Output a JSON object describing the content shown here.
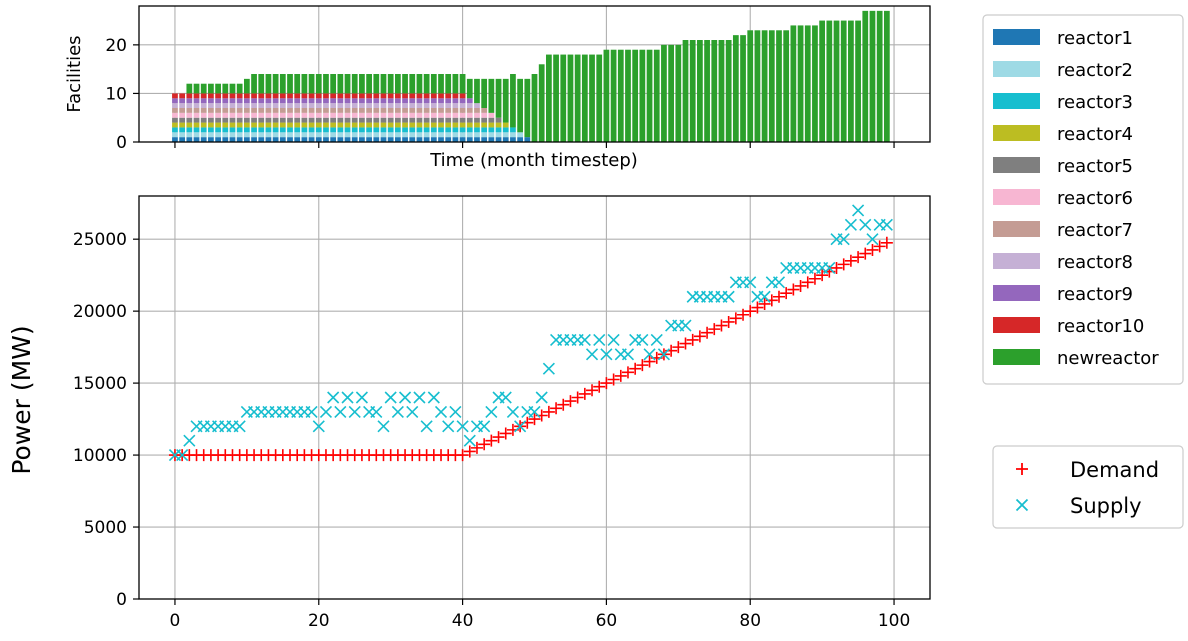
{
  "chart_data": [
    {
      "type": "bar",
      "subtype": "stacked",
      "title": "",
      "xlabel": "Time (month timestep)",
      "ylabel": "Facilities",
      "xlim": [
        -5,
        105
      ],
      "ylim": [
        0,
        28
      ],
      "yticks": [
        0,
        10,
        20
      ],
      "grid": true,
      "legend_position": "right",
      "x": [
        0,
        1,
        2,
        3,
        4,
        5,
        6,
        7,
        8,
        9,
        10,
        11,
        12,
        13,
        14,
        15,
        16,
        17,
        18,
        19,
        20,
        21,
        22,
        23,
        24,
        25,
        26,
        27,
        28,
        29,
        30,
        31,
        32,
        33,
        34,
        35,
        36,
        37,
        38,
        39,
        40,
        41,
        42,
        43,
        44,
        45,
        46,
        47,
        48,
        49,
        50,
        51,
        52,
        53,
        54,
        55,
        56,
        57,
        58,
        59,
        60,
        61,
        62,
        63,
        64,
        65,
        66,
        67,
        68,
        69,
        70,
        71,
        72,
        73,
        74,
        75,
        76,
        77,
        78,
        79,
        80,
        81,
        82,
        83,
        84,
        85,
        86,
        87,
        88,
        89,
        90,
        91,
        92,
        93,
        94,
        95,
        96,
        97,
        98,
        99
      ],
      "existing_reactors": {
        "names": [
          "reactor1",
          "reactor2",
          "reactor3",
          "reactor4",
          "reactor5",
          "reactor6",
          "reactor7",
          "reactor8",
          "reactor9",
          "reactor10"
        ],
        "colors": [
          "#1f77b4",
          "#9edae5",
          "#17becf",
          "#bcbd22",
          "#7f7f7f",
          "#f7b6d2",
          "#c49c94",
          "#c5b0d5",
          "#9467bd",
          "#d62728"
        ],
        "active_count": [
          10,
          10,
          10,
          10,
          10,
          10,
          10,
          10,
          10,
          10,
          10,
          10,
          10,
          10,
          10,
          10,
          10,
          10,
          10,
          10,
          10,
          10,
          10,
          10,
          10,
          10,
          10,
          10,
          10,
          10,
          10,
          10,
          10,
          10,
          10,
          10,
          10,
          10,
          10,
          10,
          10,
          9,
          8,
          7,
          6,
          5,
          4,
          3,
          2,
          1,
          0,
          0,
          0,
          0,
          0,
          0,
          0,
          0,
          0,
          0,
          0,
          0,
          0,
          0,
          0,
          0,
          0,
          0,
          0,
          0,
          0,
          0,
          0,
          0,
          0,
          0,
          0,
          0,
          0,
          0,
          0,
          0,
          0,
          0,
          0,
          0,
          0,
          0,
          0,
          0,
          0,
          0,
          0,
          0,
          0,
          0,
          0,
          0,
          0,
          0
        ]
      },
      "series": [
        {
          "name": "newreactor",
          "color": "#2ca02c",
          "values": [
            0,
            0,
            2,
            2,
            2,
            2,
            2,
            2,
            2,
            2,
            3,
            4,
            4,
            4,
            4,
            4,
            4,
            4,
            4,
            4,
            4,
            4,
            4,
            4,
            4,
            4,
            4,
            4,
            4,
            4,
            4,
            4,
            4,
            4,
            4,
            4,
            4,
            4,
            4,
            4,
            4,
            4,
            5,
            6,
            7,
            8,
            9,
            11,
            11,
            12,
            14,
            16,
            18,
            18,
            18,
            18,
            18,
            18,
            18,
            18,
            19,
            19,
            19,
            19,
            19,
            19,
            19,
            19,
            20,
            20,
            20,
            21,
            21,
            21,
            21,
            21,
            21,
            21,
            22,
            22,
            23,
            23,
            23,
            23,
            23,
            23,
            24,
            24,
            24,
            24,
            25,
            25,
            25,
            25,
            25,
            25,
            27,
            27,
            27,
            27
          ]
        }
      ]
    },
    {
      "type": "scatter",
      "title": "",
      "xlabel": "",
      "ylabel": "Power (MW)",
      "xlim": [
        -5,
        105
      ],
      "ylim": [
        0,
        28000
      ],
      "xticks": [
        0,
        20,
        40,
        60,
        80,
        100
      ],
      "yticks": [
        0,
        5000,
        10000,
        15000,
        20000,
        25000
      ],
      "grid": true,
      "legend_position": "right",
      "x": [
        0,
        1,
        2,
        3,
        4,
        5,
        6,
        7,
        8,
        9,
        10,
        11,
        12,
        13,
        14,
        15,
        16,
        17,
        18,
        19,
        20,
        21,
        22,
        23,
        24,
        25,
        26,
        27,
        28,
        29,
        30,
        31,
        32,
        33,
        34,
        35,
        36,
        37,
        38,
        39,
        40,
        41,
        42,
        43,
        44,
        45,
        46,
        47,
        48,
        49,
        50,
        51,
        52,
        53,
        54,
        55,
        56,
        57,
        58,
        59,
        60,
        61,
        62,
        63,
        64,
        65,
        66,
        67,
        68,
        69,
        70,
        71,
        72,
        73,
        74,
        75,
        76,
        77,
        78,
        79,
        80,
        81,
        82,
        83,
        84,
        85,
        86,
        87,
        88,
        89,
        90,
        91,
        92,
        93,
        94,
        95,
        96,
        97,
        98,
        99
      ],
      "series": [
        {
          "name": "Demand",
          "color": "#ff0000",
          "marker": "+",
          "values": [
            10000,
            10000,
            10000,
            10000,
            10000,
            10000,
            10000,
            10000,
            10000,
            10000,
            10000,
            10000,
            10000,
            10000,
            10000,
            10000,
            10000,
            10000,
            10000,
            10000,
            10000,
            10000,
            10000,
            10000,
            10000,
            10000,
            10000,
            10000,
            10000,
            10000,
            10000,
            10000,
            10000,
            10000,
            10000,
            10000,
            10000,
            10000,
            10000,
            10000,
            10000,
            10250,
            10500,
            10750,
            11000,
            11250,
            11500,
            11750,
            12000,
            12250,
            12500,
            12750,
            13000,
            13250,
            13500,
            13750,
            14000,
            14250,
            14500,
            14750,
            15000,
            15250,
            15500,
            15750,
            16000,
            16250,
            16500,
            16750,
            17000,
            17250,
            17500,
            17750,
            18000,
            18250,
            18500,
            18750,
            19000,
            19250,
            19500,
            19750,
            20000,
            20250,
            20500,
            20750,
            21000,
            21250,
            21500,
            21750,
            22000,
            22250,
            22500,
            22750,
            23000,
            23250,
            23500,
            23750,
            24000,
            24250,
            24500,
            24750
          ]
        },
        {
          "name": "Supply",
          "color": "#17becf",
          "marker": "x",
          "values": [
            10000,
            10000,
            11000,
            12000,
            12000,
            12000,
            12000,
            12000,
            12000,
            12000,
            13000,
            13000,
            13000,
            13000,
            13000,
            13000,
            13000,
            13000,
            13000,
            13000,
            12000,
            13000,
            14000,
            13000,
            14000,
            13000,
            14000,
            13000,
            13000,
            12000,
            14000,
            13000,
            14000,
            13000,
            14000,
            12000,
            14000,
            13000,
            12000,
            13000,
            12000,
            11000,
            12000,
            12000,
            13000,
            14000,
            14000,
            13000,
            12000,
            13000,
            13000,
            14000,
            16000,
            18000,
            18000,
            18000,
            18000,
            18000,
            17000,
            18000,
            17000,
            18000,
            17000,
            17000,
            18000,
            18000,
            17000,
            18000,
            17000,
            19000,
            19000,
            19000,
            21000,
            21000,
            21000,
            21000,
            21000,
            21000,
            22000,
            22000,
            22000,
            21000,
            21000,
            22000,
            22000,
            23000,
            23000,
            23000,
            23000,
            23000,
            23000,
            23000,
            25000,
            25000,
            26000,
            27000,
            26000,
            25000,
            26000,
            26000
          ]
        }
      ]
    }
  ]
}
